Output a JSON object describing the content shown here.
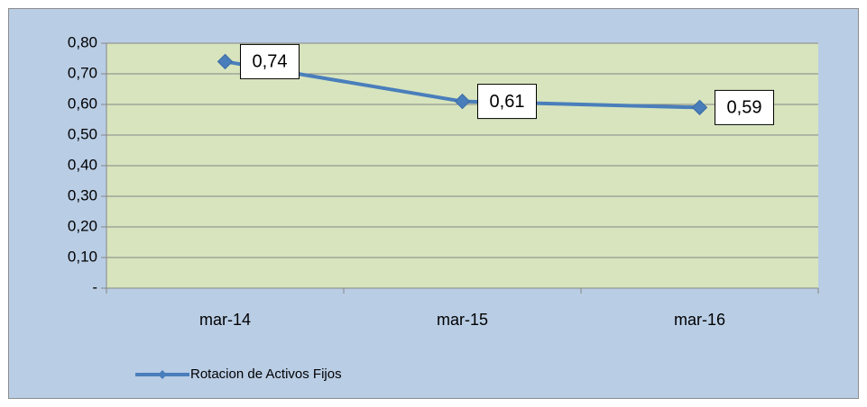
{
  "chart_data": {
    "type": "line",
    "categories": [
      "mar-14",
      "mar-15",
      "mar-16"
    ],
    "series": [
      {
        "name": "Rotacion de Activos Fijos",
        "color": "#4a7ebb",
        "values": [
          0.74,
          0.61,
          0.59
        ],
        "value_labels": [
          "0,74",
          "0,61",
          "0,59"
        ]
      }
    ],
    "ylim": [
      0,
      0.8
    ],
    "yticks": [
      {
        "value": 0,
        "label": "-"
      },
      {
        "value": 0.1,
        "label": "0,10"
      },
      {
        "value": 0.2,
        "label": "0,20"
      },
      {
        "value": 0.3,
        "label": "0,30"
      },
      {
        "value": 0.4,
        "label": "0,40"
      },
      {
        "value": 0.5,
        "label": "0,50"
      },
      {
        "value": 0.6,
        "label": "0,60"
      },
      {
        "value": 0.7,
        "label": "0,70"
      },
      {
        "value": 0.8,
        "label": "0,80"
      }
    ],
    "grid": true,
    "legend": "bottom-left"
  }
}
